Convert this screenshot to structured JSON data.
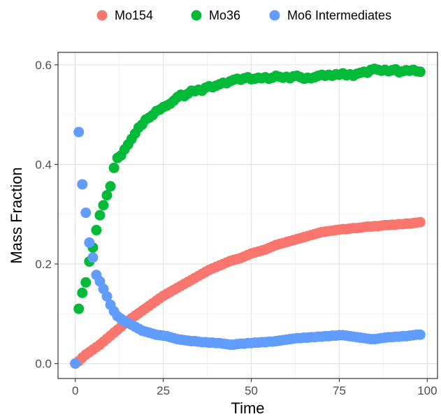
{
  "chart_data": {
    "type": "scatter",
    "title": "",
    "xlabel": "Time",
    "ylabel": "Mass Fraction",
    "xlim": [
      -4.9,
      102.9
    ],
    "ylim": [
      -0.03,
      0.625
    ],
    "x_ticks": [
      0,
      25,
      50,
      75,
      100
    ],
    "x_tick_labels": [
      "0",
      "25",
      "50",
      "75",
      "100"
    ],
    "y_ticks": [
      0.0,
      0.2,
      0.4,
      0.6
    ],
    "y_tick_labels": [
      "0.0",
      "0.2",
      "0.4",
      "0.6"
    ],
    "grid": true,
    "legend_position": "top",
    "series": [
      {
        "name": "Mo154",
        "color": "#f8766d",
        "x": [
          0,
          1,
          2,
          3,
          4,
          5,
          6,
          7,
          8,
          9,
          10,
          11,
          12,
          13,
          14,
          15,
          16,
          17,
          18,
          19,
          20,
          21,
          22,
          23,
          24,
          25,
          26,
          27,
          28,
          29,
          30,
          31,
          32,
          33,
          34,
          35,
          36,
          37,
          38,
          39,
          40,
          41,
          42,
          43,
          44,
          45,
          46,
          47,
          48,
          49,
          50,
          51,
          52,
          53,
          54,
          55,
          56,
          57,
          58,
          59,
          60,
          61,
          62,
          63,
          64,
          65,
          66,
          67,
          68,
          69,
          70,
          71,
          72,
          73,
          74,
          75,
          76,
          77,
          78,
          79,
          80,
          81,
          82,
          83,
          84,
          85,
          86,
          87,
          88,
          89,
          90,
          91,
          92,
          93,
          94,
          95,
          96,
          97,
          98
        ],
        "y": [
          0.0,
          0.005,
          0.012,
          0.018,
          0.023,
          0.028,
          0.033,
          0.038,
          0.044,
          0.05,
          0.056,
          0.062,
          0.068,
          0.074,
          0.08,
          0.086,
          0.091,
          0.096,
          0.101,
          0.106,
          0.111,
          0.116,
          0.121,
          0.126,
          0.131,
          0.136,
          0.14,
          0.144,
          0.148,
          0.152,
          0.156,
          0.16,
          0.164,
          0.168,
          0.172,
          0.176,
          0.18,
          0.184,
          0.188,
          0.191,
          0.194,
          0.197,
          0.2,
          0.203,
          0.206,
          0.208,
          0.21,
          0.212,
          0.215,
          0.218,
          0.221,
          0.223,
          0.225,
          0.227,
          0.229,
          0.232,
          0.235,
          0.238,
          0.24,
          0.242,
          0.244,
          0.246,
          0.248,
          0.25,
          0.252,
          0.254,
          0.256,
          0.258,
          0.26,
          0.262,
          0.264,
          0.265,
          0.266,
          0.267,
          0.268,
          0.269,
          0.27,
          0.27,
          0.271,
          0.272,
          0.272,
          0.273,
          0.274,
          0.275,
          0.275,
          0.276,
          0.276,
          0.277,
          0.278,
          0.278,
          0.279,
          0.279,
          0.28,
          0.28,
          0.281,
          0.281,
          0.282,
          0.283,
          0.284
        ]
      },
      {
        "name": "Mo36",
        "color": "#00ba38",
        "x": [
          1,
          2,
          3,
          4,
          5,
          6,
          7,
          8,
          9,
          10,
          11,
          12,
          13,
          14,
          15,
          16,
          17,
          18,
          19,
          20,
          21,
          22,
          23,
          24,
          25,
          26,
          27,
          28,
          29,
          30,
          31,
          32,
          33,
          34,
          35,
          36,
          37,
          38,
          39,
          40,
          41,
          42,
          43,
          44,
          45,
          46,
          47,
          48,
          49,
          50,
          51,
          52,
          53,
          54,
          55,
          56,
          57,
          58,
          59,
          60,
          61,
          62,
          63,
          64,
          65,
          66,
          67,
          68,
          69,
          70,
          71,
          72,
          73,
          74,
          75,
          76,
          77,
          78,
          79,
          80,
          81,
          82,
          83,
          84,
          85,
          86,
          87,
          88,
          89,
          90,
          91,
          92,
          93,
          94,
          95,
          96,
          97,
          98
        ],
        "y": [
          0.11,
          0.142,
          0.163,
          0.205,
          0.233,
          0.268,
          0.298,
          0.318,
          0.338,
          0.356,
          0.393,
          0.413,
          0.418,
          0.43,
          0.44,
          0.451,
          0.462,
          0.474,
          0.48,
          0.49,
          0.494,
          0.499,
          0.507,
          0.51,
          0.515,
          0.518,
          0.522,
          0.528,
          0.535,
          0.54,
          0.537,
          0.542,
          0.548,
          0.547,
          0.55,
          0.548,
          0.554,
          0.557,
          0.555,
          0.558,
          0.561,
          0.564,
          0.563,
          0.567,
          0.57,
          0.572,
          0.57,
          0.573,
          0.575,
          0.571,
          0.572,
          0.574,
          0.573,
          0.575,
          0.572,
          0.574,
          0.578,
          0.576,
          0.574,
          0.576,
          0.573,
          0.577,
          0.578,
          0.575,
          0.572,
          0.574,
          0.573,
          0.575,
          0.578,
          0.58,
          0.578,
          0.58,
          0.578,
          0.581,
          0.58,
          0.583,
          0.579,
          0.581,
          0.578,
          0.582,
          0.584,
          0.586,
          0.584,
          0.59,
          0.592,
          0.59,
          0.588,
          0.59,
          0.587,
          0.589,
          0.591,
          0.585,
          0.587,
          0.589,
          0.588,
          0.59,
          0.587,
          0.586
        ]
      },
      {
        "name": "Mo6 Intermediates",
        "color": "#619cff",
        "x": [
          0,
          1,
          2,
          3,
          4,
          5,
          6,
          7,
          8,
          9,
          10,
          11,
          12,
          13,
          14,
          15,
          16,
          17,
          18,
          19,
          20,
          21,
          22,
          23,
          24,
          25,
          26,
          27,
          28,
          29,
          30,
          31,
          32,
          33,
          34,
          35,
          36,
          37,
          38,
          39,
          40,
          41,
          42,
          43,
          44,
          45,
          46,
          47,
          48,
          49,
          50,
          51,
          52,
          53,
          54,
          55,
          56,
          57,
          58,
          59,
          60,
          61,
          62,
          63,
          64,
          65,
          66,
          67,
          68,
          69,
          70,
          71,
          72,
          73,
          74,
          75,
          76,
          77,
          78,
          79,
          80,
          81,
          82,
          83,
          84,
          85,
          86,
          87,
          88,
          89,
          90,
          91,
          92,
          93,
          94,
          95,
          96,
          97,
          98
        ],
        "y": [
          0.0,
          0.465,
          0.36,
          0.303,
          0.243,
          0.213,
          0.178,
          0.165,
          0.15,
          0.135,
          0.118,
          0.105,
          0.095,
          0.09,
          0.085,
          0.082,
          0.078,
          0.074,
          0.07,
          0.066,
          0.064,
          0.062,
          0.06,
          0.058,
          0.057,
          0.056,
          0.055,
          0.053,
          0.051,
          0.049,
          0.048,
          0.047,
          0.046,
          0.045,
          0.045,
          0.044,
          0.043,
          0.043,
          0.042,
          0.042,
          0.041,
          0.041,
          0.04,
          0.039,
          0.038,
          0.038,
          0.039,
          0.04,
          0.04,
          0.041,
          0.041,
          0.042,
          0.042,
          0.043,
          0.043,
          0.044,
          0.044,
          0.045,
          0.046,
          0.047,
          0.048,
          0.049,
          0.05,
          0.051,
          0.051,
          0.052,
          0.052,
          0.053,
          0.053,
          0.054,
          0.054,
          0.055,
          0.055,
          0.056,
          0.056,
          0.057,
          0.057,
          0.056,
          0.055,
          0.054,
          0.053,
          0.052,
          0.051,
          0.05,
          0.049,
          0.049,
          0.05,
          0.051,
          0.052,
          0.053,
          0.053,
          0.054,
          0.054,
          0.055,
          0.055,
          0.056,
          0.057,
          0.058,
          0.058
        ]
      }
    ]
  }
}
